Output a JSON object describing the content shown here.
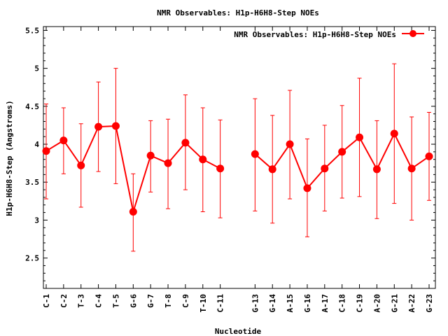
{
  "chart_data": {
    "type": "line",
    "title": "NMR Observables: H1p-H6H8-Step NOEs",
    "xlabel": "Nucleotide",
    "ylabel": "H1p-H6H8-Step (Angstroms)",
    "ylim": [
      2.1,
      5.55
    ],
    "yticks": [
      "2.5",
      "3",
      "3.5",
      "4",
      "4.5",
      "5",
      "5.5"
    ],
    "grid": false,
    "legend_position": "top-right",
    "series_color": "#ff0000",
    "categories": [
      "C-1",
      "C-2",
      "T-3",
      "C-4",
      "T-5",
      "G-6",
      "G-7",
      "T-8",
      "C-9",
      "T-10",
      "C-11",
      "G-13",
      "G-14",
      "A-15",
      "G-16",
      "A-17",
      "C-18",
      "C-19",
      "A-20",
      "G-21",
      "A-22",
      "G-23"
    ],
    "x": [
      1,
      2,
      3,
      4,
      5,
      6,
      7,
      8,
      9,
      10,
      11,
      13,
      14,
      15,
      16,
      17,
      18,
      19,
      20,
      21,
      22,
      23
    ],
    "xlim": [
      1,
      23
    ],
    "series": [
      {
        "name": "NMR Observables: H1p-H6H8-Step NOEs",
        "segments": [
          [
            1,
            2,
            3,
            4,
            5,
            6,
            7,
            8,
            9,
            10,
            11
          ],
          [
            13,
            14,
            15,
            16,
            17,
            18,
            19,
            20,
            21,
            22,
            23
          ]
        ],
        "values": [
          3.91,
          4.05,
          3.72,
          4.23,
          4.24,
          3.11,
          3.85,
          3.75,
          4.02,
          3.8,
          3.68,
          3.87,
          3.67,
          4.0,
          3.42,
          3.68,
          3.9,
          4.09,
          3.67,
          4.14,
          3.68,
          3.84
        ],
        "err_low": [
          3.28,
          3.61,
          3.17,
          3.64,
          3.48,
          2.59,
          3.37,
          3.15,
          3.4,
          3.11,
          3.03,
          3.12,
          2.96,
          3.28,
          2.78,
          3.12,
          3.29,
          3.31,
          3.02,
          3.22,
          3.0,
          3.26
        ],
        "err_high": [
          4.53,
          4.48,
          4.27,
          4.82,
          5.0,
          3.61,
          4.31,
          4.33,
          4.65,
          4.48,
          4.32,
          4.6,
          4.38,
          4.71,
          4.07,
          4.25,
          4.51,
          4.87,
          4.31,
          5.06,
          4.36,
          4.42
        ]
      }
    ]
  }
}
